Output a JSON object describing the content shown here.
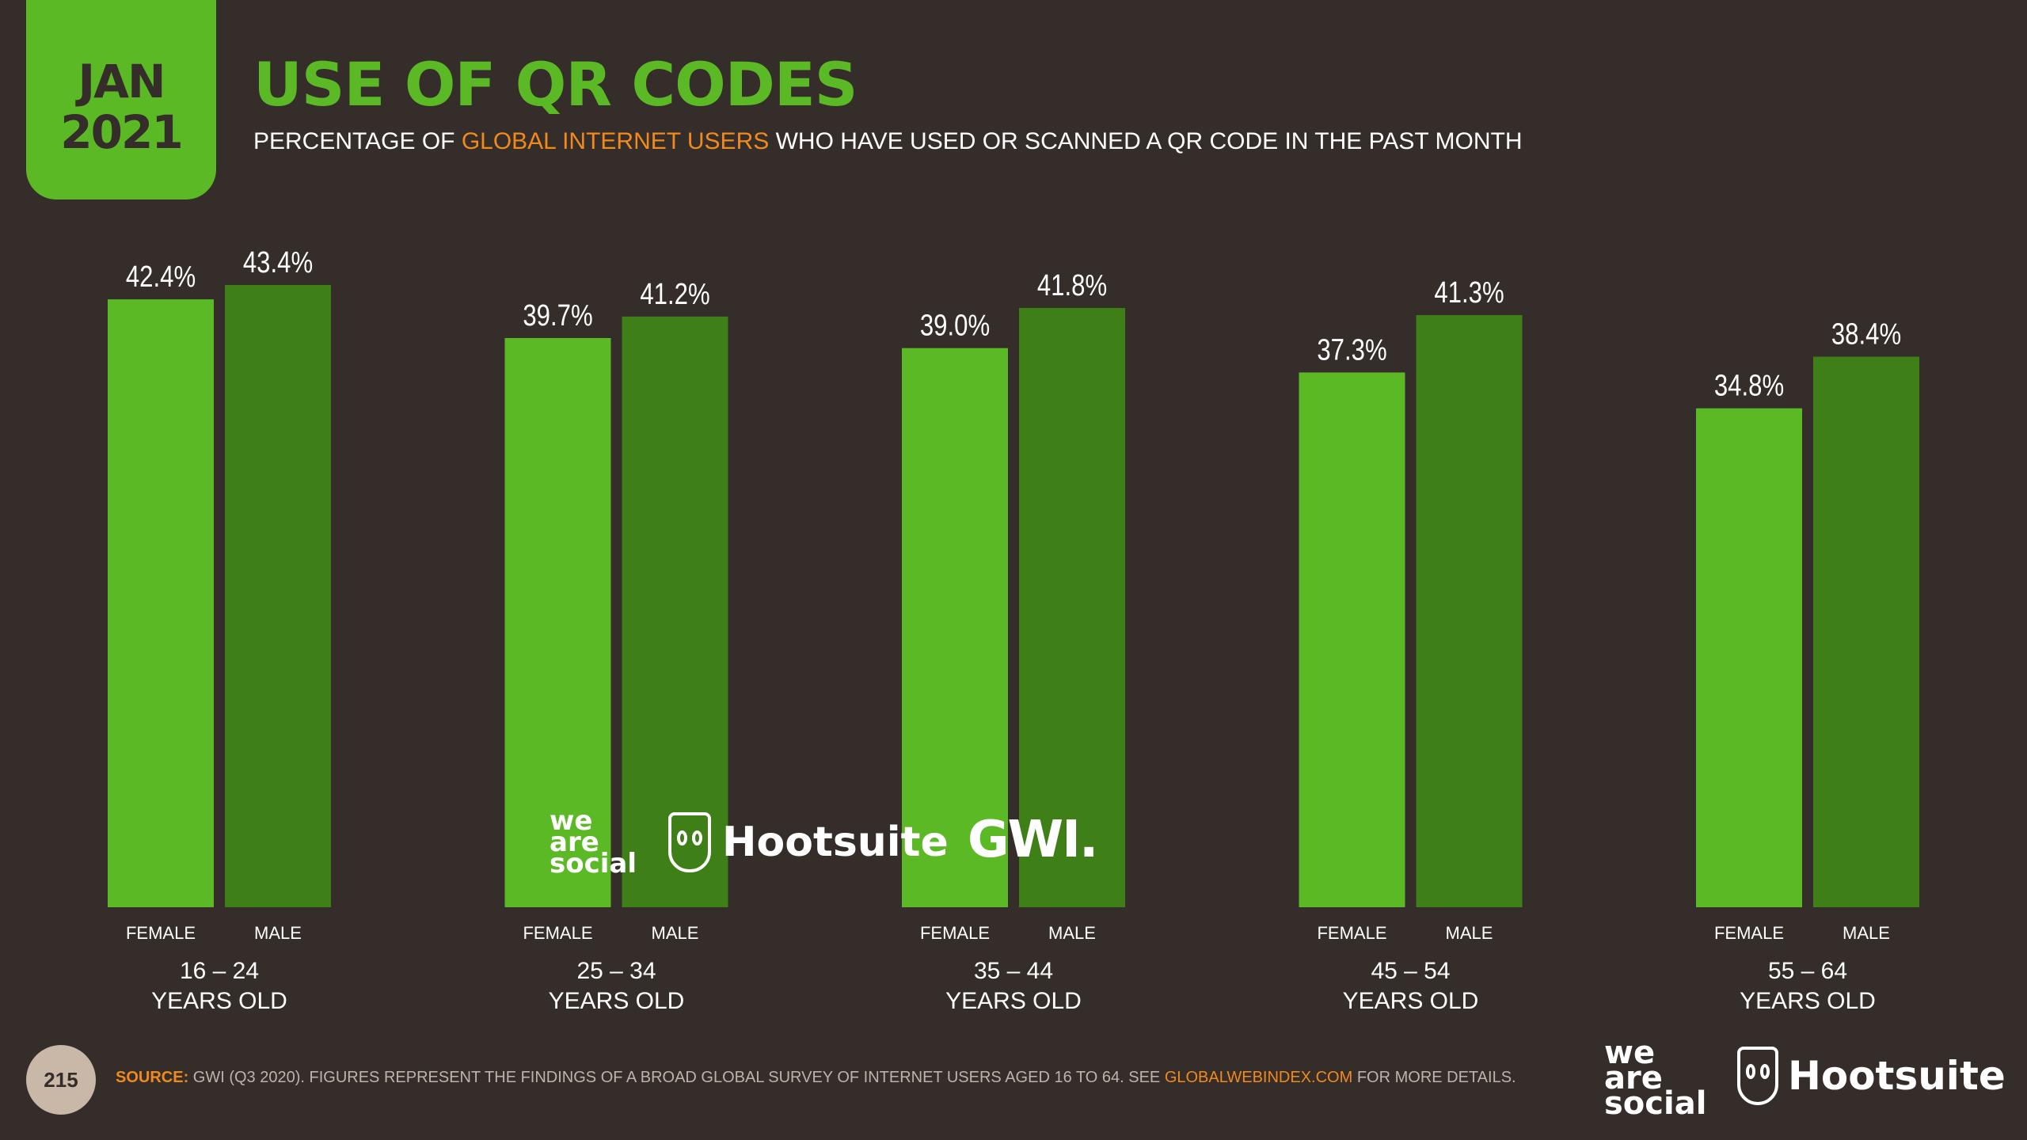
{
  "header": {
    "date_month": "JAN",
    "date_year": "2021",
    "title": "USE OF QR CODES",
    "subtitle_pre": "PERCENTAGE OF ",
    "subtitle_highlight": "GLOBAL INTERNET USERS",
    "subtitle_post": " WHO HAVE USED OR SCANNED A QR CODE IN THE PAST MONTH"
  },
  "colors": {
    "background": "#352d29",
    "female_bar": "#5cb926",
    "male_bar": "#3e7f17",
    "title": "#5cb926",
    "highlight": "#f08a1c"
  },
  "chart_data": {
    "type": "bar",
    "title": "USE OF QR CODES",
    "categories": [
      {
        "line1": "16 – 24",
        "line2": "YEARS OLD"
      },
      {
        "line1": "25 – 34",
        "line2": "YEARS OLD"
      },
      {
        "line1": "35 – 44",
        "line2": "YEARS OLD"
      },
      {
        "line1": "45 – 54",
        "line2": "YEARS OLD"
      },
      {
        "line1": "55 – 64",
        "line2": "YEARS OLD"
      }
    ],
    "series": [
      {
        "name": "FEMALE",
        "values": [
          42.4,
          39.7,
          39.0,
          37.3,
          34.8
        ]
      },
      {
        "name": "MALE",
        "values": [
          43.4,
          41.2,
          41.8,
          41.3,
          38.4
        ]
      }
    ],
    "value_suffix": "%",
    "ylim": [
      0,
      43.4
    ],
    "xlabel": "",
    "ylabel": ""
  },
  "logos": {
    "mid_we_are_social": [
      "we",
      "are",
      "social"
    ],
    "mid_hootsuite": "Hootsuite",
    "mid_gwi": "GWI.",
    "footer_we_are_social": [
      "we",
      "are",
      "social"
    ],
    "footer_hootsuite": "Hootsuite"
  },
  "footer": {
    "page_number": "215",
    "source_label": "SOURCE:",
    "source_text": " GWI (Q3 2020). FIGURES REPRESENT THE FINDINGS OF A BROAD GLOBAL SURVEY OF INTERNET USERS AGED 16 TO 64. SEE ",
    "source_link": "GLOBALWEBINDEX.COM",
    "source_tail": " FOR MORE DETAILS."
  }
}
